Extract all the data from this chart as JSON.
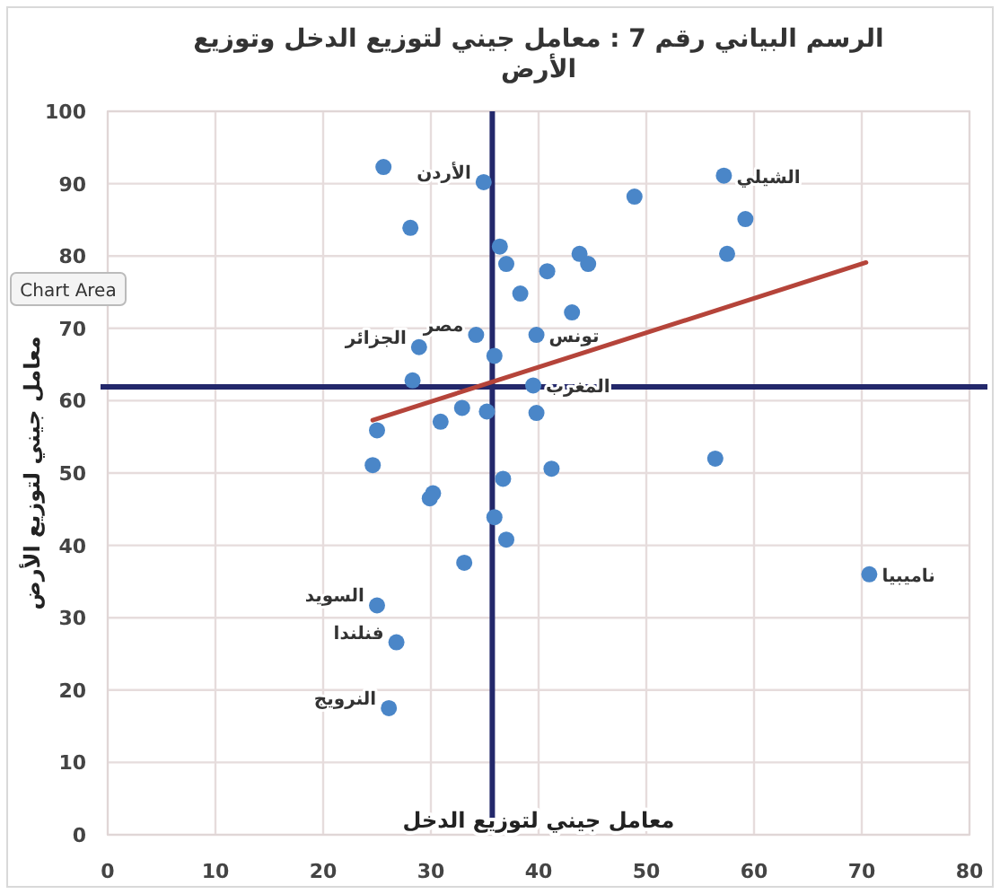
{
  "chart_data": {
    "type": "scatter",
    "title": "الرسم البياني رقم 7 : معامل جيني لتوزيع الدخل وتوزيع الأرض",
    "xlabel": "معامل جيني لتوزيع الدخل",
    "ylabel": "معامل جيني لتوزيع الأرض",
    "xlim": [
      0,
      80
    ],
    "xticks": [
      0,
      10,
      20,
      30,
      40,
      50,
      60,
      70,
      80
    ],
    "ylim": [
      0,
      100
    ],
    "yticks": [
      0,
      10,
      20,
      30,
      40,
      50,
      60,
      70,
      80,
      90,
      100
    ],
    "grid": true,
    "marker": "circle",
    "series": [
      {
        "color": "#4a86c8",
        "x": [
          25.6,
          34.9,
          28.1,
          48.9,
          57.2,
          59.2,
          57.5,
          36.4,
          37.0,
          40.8,
          43.8,
          44.6,
          38.3,
          43.1,
          34.2,
          39.8,
          28.9,
          35.9,
          28.3,
          39.5,
          32.9,
          30.9,
          35.2,
          39.8,
          25.0,
          24.6,
          41.2,
          30.2,
          29.9,
          33.1,
          25.0,
          26.8,
          56.4,
          36.7,
          35.9,
          37.0,
          70.7,
          26.1
        ],
        "values": [
          92.3,
          90.2,
          83.9,
          88.2,
          91.1,
          85.1,
          80.3,
          81.3,
          78.9,
          77.9,
          80.3,
          78.9,
          74.8,
          72.2,
          69.1,
          69.1,
          67.4,
          66.2,
          62.8,
          62.1,
          59.0,
          57.1,
          58.5,
          58.3,
          55.9,
          51.1,
          50.6,
          47.2,
          46.5,
          37.6,
          31.7,
          26.6,
          52.0,
          49.2,
          43.9,
          40.8,
          36.0,
          17.5
        ]
      },
      {
        "type": "line",
        "color": "#b5443a",
        "marker": "none",
        "x": [
          24.6,
          70.4
        ],
        "values": [
          57.3,
          79.1
        ]
      }
    ],
    "ref_lines": [
      {
        "axis": "x",
        "value": 35.7,
        "color": "#23286b"
      },
      {
        "axis": "y",
        "value": 61.9,
        "color": "#23286b"
      }
    ],
    "annotations": [
      {
        "text": "الشيلي",
        "x": 57.2,
        "y": 91.1
      },
      {
        "text": "الأردن",
        "x": 34.9,
        "y": 90.2
      },
      {
        "text": "مصر",
        "x": 34.2,
        "y": 69.1
      },
      {
        "text": "تونس",
        "x": 39.8,
        "y": 69.1
      },
      {
        "text": "الجزائر",
        "x": 28.9,
        "y": 67.4
      },
      {
        "text": "المغرب",
        "x": 39.5,
        "y": 62.1
      },
      {
        "text": "ناميبيا",
        "x": 70.7,
        "y": 36.0
      },
      {
        "text": "السويد",
        "x": 25.0,
        "y": 31.7
      },
      {
        "text": "فنلندا",
        "x": 26.8,
        "y": 26.6
      },
      {
        "text": "النرويج",
        "x": 26.1,
        "y": 17.5
      },
      "Chart Area"
    ]
  }
}
